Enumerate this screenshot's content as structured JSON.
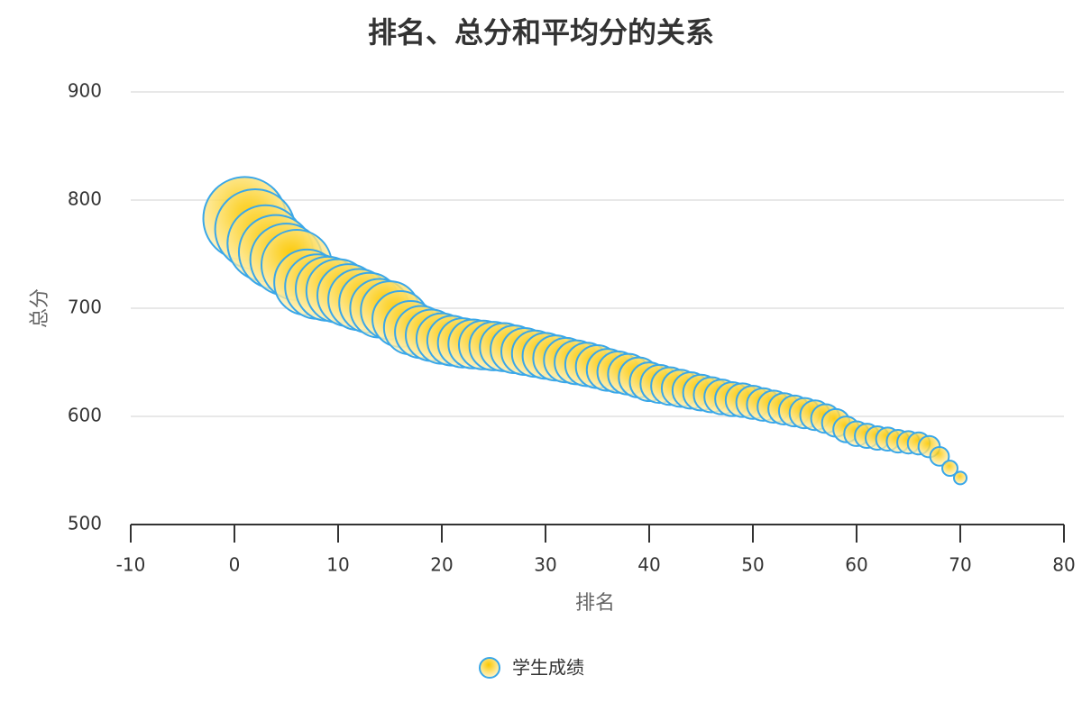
{
  "chart_data": {
    "type": "scatter",
    "title": "排名、总分和平均分的关系",
    "x_label": "排名",
    "y_label": "总分",
    "xlim": [
      -10,
      80
    ],
    "xticks": [
      -10,
      0,
      10,
      20,
      30,
      40,
      50,
      60,
      70,
      80
    ],
    "ylim": [
      500,
      900
    ],
    "yticks": [
      500,
      600,
      700,
      800,
      900
    ],
    "grid": true,
    "series": [
      {
        "name": "学生成绩",
        "color": "#fbc800",
        "border_color": "#3aa7e8",
        "x": [
          1,
          2,
          3,
          4,
          5,
          6,
          7,
          8,
          9,
          10,
          11,
          12,
          13,
          14,
          15,
          16,
          17,
          18,
          19,
          20,
          21,
          22,
          23,
          24,
          25,
          26,
          27,
          28,
          29,
          30,
          31,
          32,
          33,
          34,
          35,
          36,
          37,
          38,
          39,
          40,
          41,
          42,
          43,
          44,
          45,
          46,
          47,
          48,
          49,
          50,
          51,
          52,
          53,
          54,
          55,
          56,
          57,
          58,
          59,
          60,
          61,
          62,
          63,
          64,
          65,
          66,
          67,
          68,
          69,
          70
        ],
        "values": [
          783,
          773,
          760,
          752,
          745,
          740,
          724,
          720,
          718,
          716,
          712,
          708,
          705,
          700,
          698,
          690,
          682,
          678,
          675,
          672,
          670,
          668,
          667,
          666,
          665,
          664,
          662,
          660,
          658,
          656,
          654,
          652,
          650,
          648,
          646,
          643,
          641,
          639,
          636,
          632,
          630,
          628,
          626,
          624,
          622,
          620,
          618,
          616,
          615,
          613,
          611,
          609,
          607,
          605,
          603,
          601,
          598,
          594,
          588,
          584,
          582,
          580,
          579,
          577,
          576,
          575,
          572,
          563,
          552,
          543
        ],
        "sizes": [
          87.0,
          85.9,
          84.4,
          83.6,
          82.8,
          82.2,
          80.4,
          80.0,
          79.8,
          79.6,
          79.1,
          78.7,
          78.3,
          77.8,
          77.6,
          76.7,
          75.8,
          75.3,
          75.0,
          74.7,
          74.4,
          74.2,
          74.1,
          74.0,
          73.9,
          73.8,
          73.6,
          73.3,
          73.1,
          72.9,
          72.7,
          72.4,
          72.2,
          72.0,
          71.8,
          71.4,
          71.2,
          71.0,
          70.7,
          70.2,
          70.0,
          69.8,
          69.6,
          69.3,
          69.1,
          68.9,
          68.7,
          68.4,
          68.3,
          68.1,
          67.9,
          67.7,
          67.4,
          67.2,
          67.0,
          66.8,
          66.4,
          66.0,
          65.3,
          64.9,
          64.7,
          64.4,
          64.3,
          64.1,
          64.0,
          63.9,
          63.6,
          62.6,
          61.3,
          60.3
        ]
      }
    ]
  }
}
